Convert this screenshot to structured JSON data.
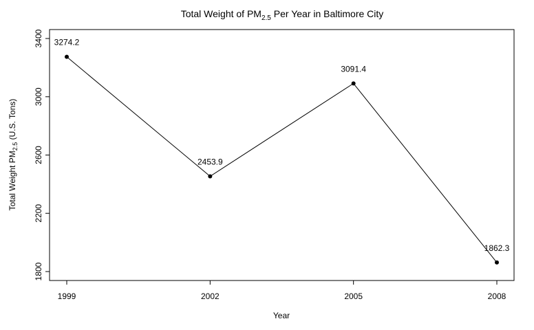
{
  "chart_data": {
    "type": "line",
    "title": {
      "prefix": "Total Weight of PM",
      "sub": "2.5",
      "suffix": " Per Year in Baltimore City"
    },
    "xlabel": "Year",
    "ylabel": {
      "prefix": "Total Weight PM",
      "sub": "2.5",
      "suffix": " (U.S. Tons)"
    },
    "categories": [
      "1999",
      "2002",
      "2005",
      "2008"
    ],
    "values": [
      3274.2,
      2453.9,
      3091.4,
      1862.3
    ],
    "data_labels": [
      "3274.2",
      "2453.9",
      "3091.4",
      "1862.3"
    ],
    "yticks": [
      1800,
      2200,
      2600,
      3000,
      3400
    ],
    "ytick_labels": [
      "1800",
      "2200",
      "2600",
      "3000",
      "3400"
    ],
    "ylim": [
      1800,
      3400
    ],
    "grid": false,
    "colors": {
      "line": "#000000",
      "point": "#000000"
    }
  }
}
